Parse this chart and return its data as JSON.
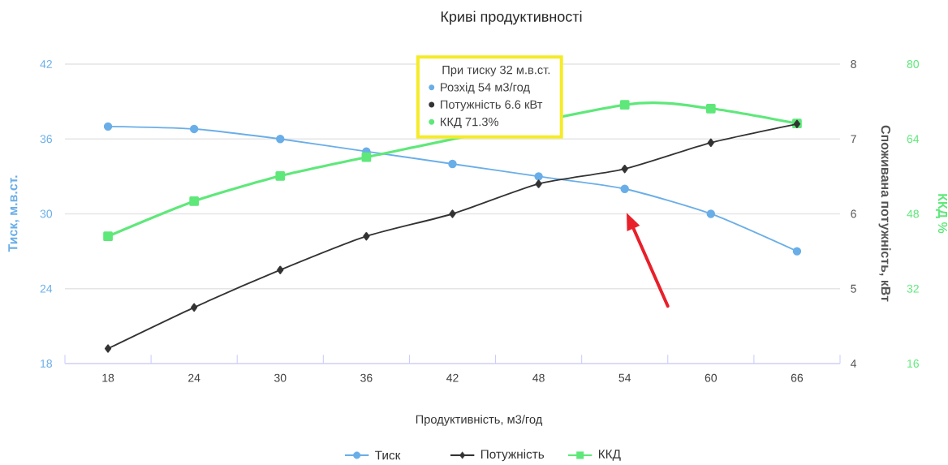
{
  "chart_data": {
    "type": "line",
    "title": "Криві продуктивності",
    "xlabel": "Продуктивність, м3/год",
    "ylabel": "Тиск, м.в.ст.",
    "y2label": "Споживана потужність, кВт",
    "y3label": "ККД %",
    "categories": [
      "18",
      "24",
      "30",
      "36",
      "42",
      "48",
      "54",
      "60",
      "66"
    ],
    "series": [
      {
        "name": "Тиск",
        "color": "#6aaee8",
        "marker": "circle",
        "values": [
          37.0,
          36.8,
          36.0,
          35.0,
          34.0,
          33.0,
          32.0,
          30.0,
          27.0
        ]
      },
      {
        "name": "Потужність",
        "color": "#333333",
        "marker": "diamond",
        "axis": "y2",
        "values": [
          4.2,
          4.75,
          5.25,
          5.7,
          6.0,
          6.4,
          6.6,
          6.95,
          7.2
        ]
      },
      {
        "name": "ККД",
        "color": "#5ee87a",
        "marker": "square",
        "axis": "y3",
        "values": [
          43.2,
          50.7,
          56.1,
          60.1,
          null,
          null,
          71.3,
          70.5,
          67.3
        ]
      }
    ],
    "ylim": [
      18,
      42
    ],
    "yticks": [
      18,
      24,
      30,
      36,
      42
    ],
    "y2lim": [
      4,
      8
    ],
    "y2ticks": [
      4,
      5,
      6,
      7,
      8
    ],
    "y3lim": [
      16,
      80
    ],
    "y3ticks": [
      16,
      32,
      48,
      64,
      80
    ],
    "grid": "y",
    "legend": "bottom",
    "annotations": [
      "При тиску 32 м.в.ст.",
      "Розхід 54 м3/год",
      "Потужність 6.6 кВт",
      "ККД 71.3%"
    ]
  }
}
